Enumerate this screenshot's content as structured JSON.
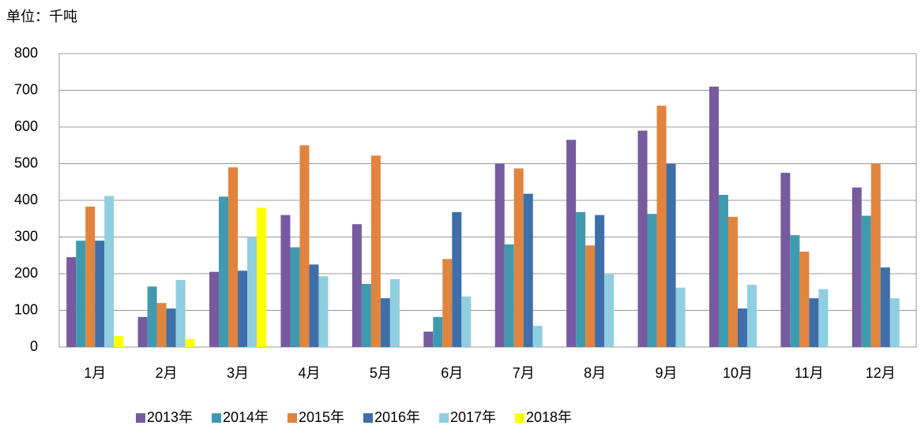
{
  "chart_data": {
    "type": "bar",
    "subtitle": "单位：千吨",
    "categories": [
      "1月",
      "2月",
      "3月",
      "4月",
      "5月",
      "6月",
      "7月",
      "8月",
      "9月",
      "10月",
      "11月",
      "12月"
    ],
    "series": [
      {
        "name": "2013年",
        "color": "#775aa0",
        "values": [
          245,
          82,
          205,
          360,
          335,
          42,
          500,
          565,
          590,
          710,
          475,
          435
        ]
      },
      {
        "name": "2014年",
        "color": "#3f9ab0",
        "values": [
          290,
          165,
          410,
          272,
          172,
          82,
          280,
          368,
          363,
          415,
          305,
          358
        ]
      },
      {
        "name": "2015年",
        "color": "#e0843e",
        "values": [
          383,
          120,
          490,
          550,
          522,
          240,
          487,
          277,
          658,
          355,
          260,
          500
        ]
      },
      {
        "name": "2016年",
        "color": "#3f6fa8",
        "values": [
          290,
          105,
          208,
          225,
          133,
          368,
          418,
          360,
          500,
          105,
          133,
          217
        ]
      },
      {
        "name": "2017年",
        "color": "#8fcfe0",
        "values": [
          412,
          183,
          300,
          193,
          185,
          138,
          58,
          198,
          162,
          170,
          158,
          133
        ]
      },
      {
        "name": "2018年",
        "color": "#ffff00",
        "values": [
          30,
          22,
          380,
          null,
          null,
          null,
          null,
          null,
          null,
          null,
          null,
          null
        ]
      }
    ],
    "ylim": [
      0,
      800
    ],
    "yticks": [
      0,
      100,
      200,
      300,
      400,
      500,
      600,
      700,
      800
    ],
    "grid": true,
    "legend": "bottom"
  }
}
